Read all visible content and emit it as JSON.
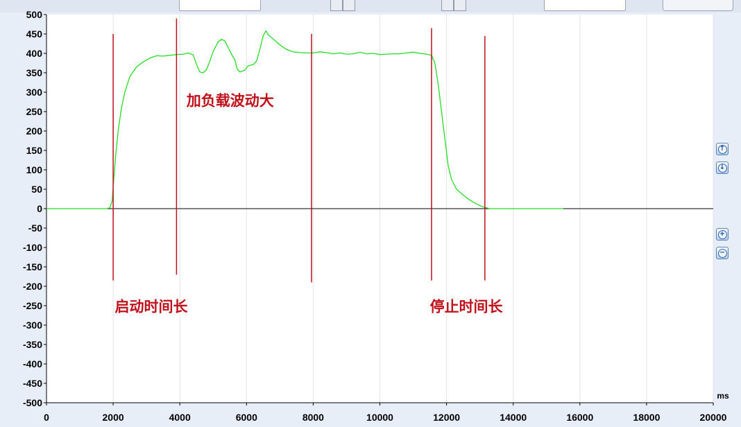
{
  "chart_data": {
    "type": "line",
    "x_unit": "ms",
    "xlim": [
      0,
      20000
    ],
    "ylim": [
      -500,
      500
    ],
    "x_ticks": [
      0,
      2000,
      4000,
      6000,
      8000,
      10000,
      12000,
      14000,
      16000,
      18000,
      20000
    ],
    "y_ticks": [
      500,
      450,
      400,
      350,
      300,
      250,
      200,
      150,
      100,
      50,
      0,
      -50,
      -100,
      -150,
      -200,
      -250,
      -300,
      -350,
      -400,
      -450,
      -500
    ],
    "grid": true,
    "series": [
      {
        "color": "#22dd22",
        "points": [
          [
            0,
            0
          ],
          [
            1800,
            0
          ],
          [
            1900,
            2
          ],
          [
            1970,
            20
          ],
          [
            2020,
            80
          ],
          [
            2080,
            140
          ],
          [
            2150,
            200
          ],
          [
            2250,
            260
          ],
          [
            2350,
            300
          ],
          [
            2500,
            340
          ],
          [
            2700,
            365
          ],
          [
            2900,
            378
          ],
          [
            3100,
            388
          ],
          [
            3300,
            394
          ],
          [
            3500,
            393
          ],
          [
            3700,
            395
          ],
          [
            3900,
            397
          ],
          [
            4100,
            398
          ],
          [
            4250,
            401
          ],
          [
            4400,
            396
          ],
          [
            4500,
            372
          ],
          [
            4600,
            352
          ],
          [
            4700,
            350
          ],
          [
            4800,
            358
          ],
          [
            4900,
            380
          ],
          [
            5000,
            405
          ],
          [
            5150,
            430
          ],
          [
            5250,
            436
          ],
          [
            5350,
            432
          ],
          [
            5450,
            415
          ],
          [
            5550,
            398
          ],
          [
            5650,
            383
          ],
          [
            5720,
            360
          ],
          [
            5800,
            352
          ],
          [
            5950,
            357
          ],
          [
            6050,
            368
          ],
          [
            6200,
            371
          ],
          [
            6300,
            380
          ],
          [
            6400,
            410
          ],
          [
            6500,
            445
          ],
          [
            6580,
            458
          ],
          [
            6650,
            448
          ],
          [
            6800,
            437
          ],
          [
            7000,
            422
          ],
          [
            7200,
            410
          ],
          [
            7400,
            404
          ],
          [
            7600,
            402
          ],
          [
            7800,
            401
          ],
          [
            8000,
            401
          ],
          [
            8200,
            404
          ],
          [
            8400,
            402
          ],
          [
            8600,
            399
          ],
          [
            8800,
            401
          ],
          [
            9000,
            398
          ],
          [
            9200,
            399
          ],
          [
            9400,
            403
          ],
          [
            9600,
            399
          ],
          [
            9800,
            400
          ],
          [
            10000,
            397
          ],
          [
            10200,
            398
          ],
          [
            10400,
            399
          ],
          [
            10600,
            399
          ],
          [
            10800,
            401
          ],
          [
            11000,
            403
          ],
          [
            11200,
            400
          ],
          [
            11400,
            398
          ],
          [
            11550,
            395
          ],
          [
            11650,
            375
          ],
          [
            11750,
            320
          ],
          [
            11850,
            250
          ],
          [
            11950,
            180
          ],
          [
            12050,
            110
          ],
          [
            12150,
            75
          ],
          [
            12300,
            50
          ],
          [
            12500,
            35
          ],
          [
            12700,
            22
          ],
          [
            12900,
            12
          ],
          [
            13000,
            8
          ],
          [
            13150,
            3
          ],
          [
            13300,
            0
          ],
          [
            15500,
            0
          ]
        ]
      }
    ],
    "markers": {
      "color": "#c0101a",
      "lines": [
        {
          "x": 2000,
          "y_top": 450,
          "y_bottom": -185
        },
        {
          "x": 3900,
          "y_top": 490,
          "y_bottom": -170
        },
        {
          "x": 7950,
          "y_top": 450,
          "y_bottom": -190
        },
        {
          "x": 11550,
          "y_top": 465,
          "y_bottom": -185
        },
        {
          "x": 13150,
          "y_top": 445,
          "y_bottom": -185
        }
      ]
    },
    "annotations": [
      {
        "text": "加负载波动大",
        "x": 4200,
        "y": 265
      },
      {
        "text": "启动时间长",
        "x": 2050,
        "y": -265
      },
      {
        "text": "停止时间长",
        "x": 11500,
        "y": -265
      }
    ]
  },
  "icons": {
    "scroll_up": "arrow-up-circle-icon",
    "scroll_down": "arrow-down-circle-icon",
    "zoom_in": "plus-circle-icon",
    "zoom_out": "minus-circle-icon"
  },
  "colors": {
    "axis_label": "#000000",
    "plot_bg": "#ffffff",
    "grid": "#e4e4e4",
    "frame_bg": "#e8eef7"
  }
}
